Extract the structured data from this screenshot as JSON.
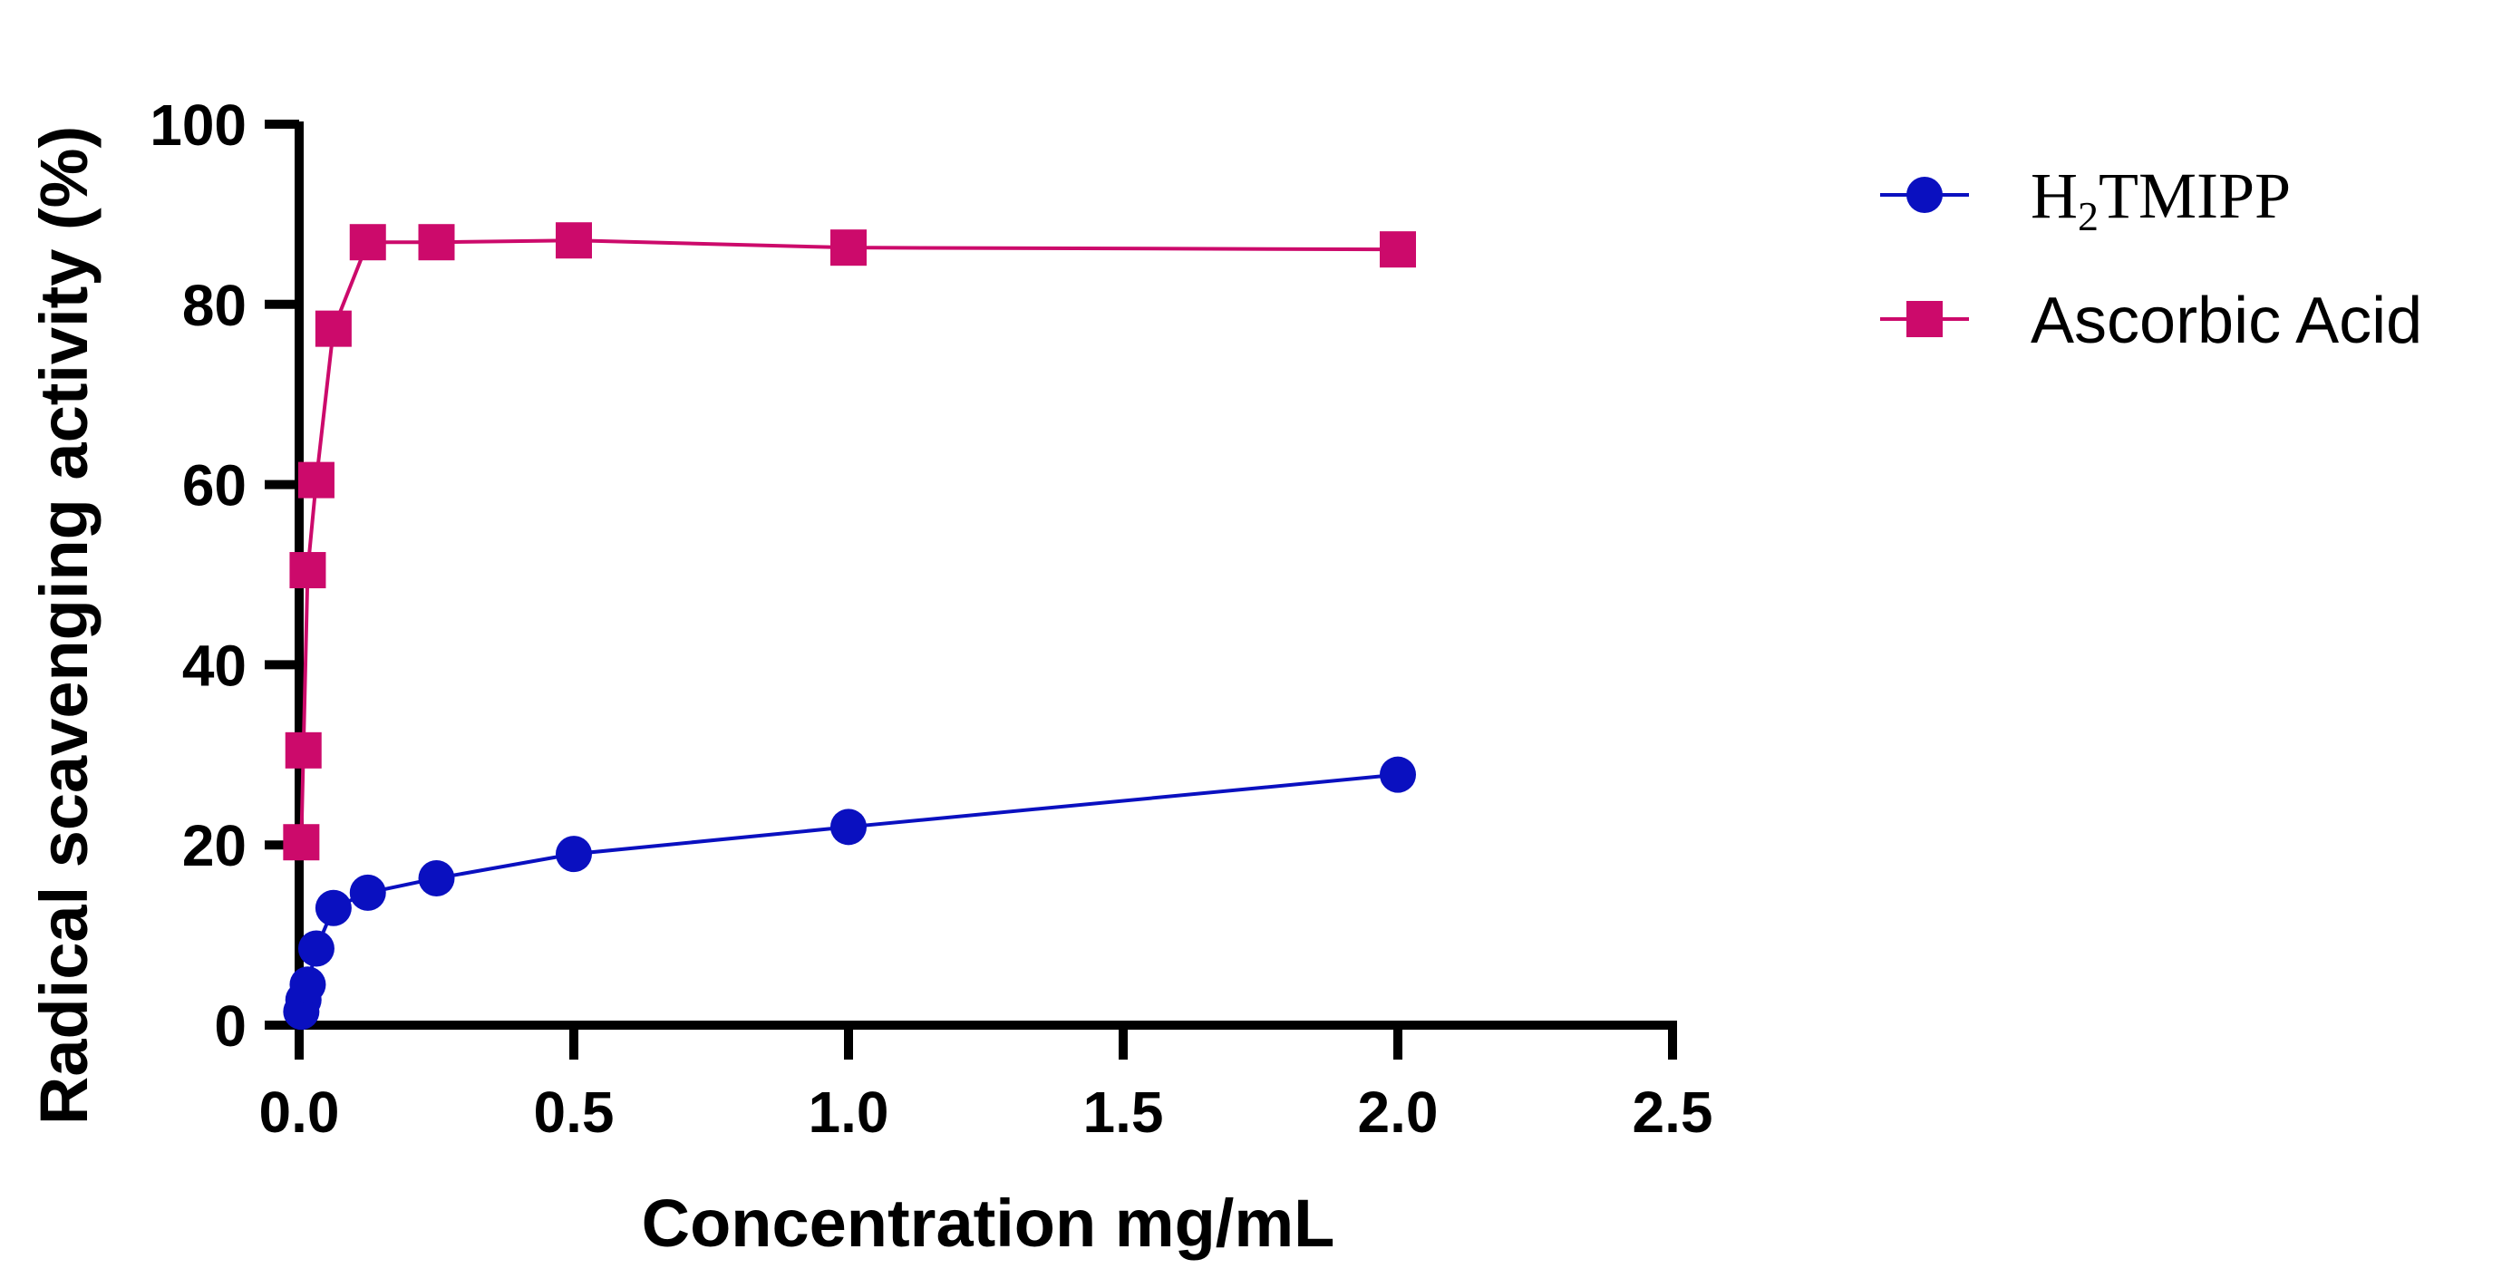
{
  "chart_data": {
    "type": "line",
    "title": "",
    "xlabel": "Concentration mg/mL",
    "ylabel": "Radical scavenging activity (%)",
    "xlim": [
      0,
      2.5
    ],
    "ylim": [
      0,
      100
    ],
    "xticks": [
      "0.0",
      "0.5",
      "1.0",
      "1.5",
      "2.0",
      "2.5"
    ],
    "yticks": [
      "0",
      "20",
      "40",
      "60",
      "80",
      "100"
    ],
    "grid": false,
    "legend_position": "top-right-outside",
    "series": [
      {
        "name": "H2TMIPP",
        "legend_main": "H",
        "legend_sub": "2",
        "legend_rest": "TMIPP",
        "color": "#0a10c0",
        "marker": "circle",
        "x": [
          0.0039,
          0.0078,
          0.0156,
          0.03125,
          0.0625,
          0.125,
          0.25,
          0.5,
          1.0,
          2.0
        ],
        "y": [
          1.5,
          2.8,
          4.5,
          8.5,
          13.0,
          14.7,
          16.3,
          19.0,
          22.0,
          27.8
        ]
      },
      {
        "name": "Ascorbic Acid",
        "legend_main": "Ascorbic Acid",
        "legend_sub": "",
        "legend_rest": "",
        "color": "#cc0a6b",
        "marker": "square",
        "x": [
          0.0039,
          0.0078,
          0.0156,
          0.03125,
          0.0625,
          0.125,
          0.25,
          0.5,
          1.0,
          2.0
        ],
        "y": [
          20.3,
          30.5,
          50.5,
          60.5,
          77.3,
          86.9,
          86.9,
          87.1,
          86.3,
          86.1
        ]
      }
    ]
  }
}
